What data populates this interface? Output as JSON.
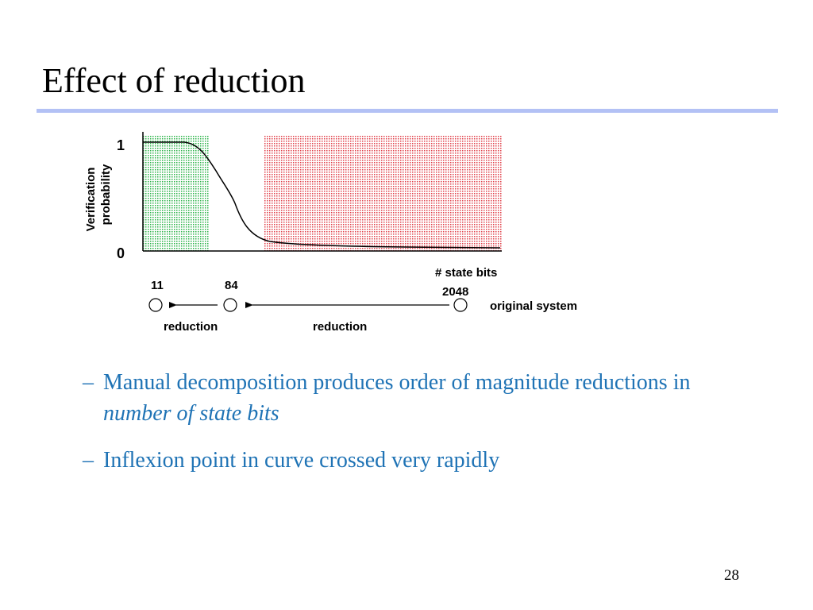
{
  "slide": {
    "title": "Effect of reduction",
    "page_number": "28"
  },
  "figure": {
    "y_axis_label_line1": "Verification",
    "y_axis_label_line2": "probability",
    "y_tick_top": "1",
    "y_tick_bottom": "0",
    "x_axis_label": "# state bits",
    "x_value_original": "2048",
    "x_value_mid": "84",
    "x_value_small": "11",
    "original_label": "original system",
    "reduction_label_right": "reduction",
    "reduction_label_left": "reduction",
    "colors": {
      "green_region": "#2db34a",
      "red_region": "#e0404a",
      "curve": "#000000"
    }
  },
  "bullets": [
    {
      "dash": "–",
      "text_plain": "Manual decomposition produces order of magnitude reductions in ",
      "text_italic": "number of state bits"
    },
    {
      "dash": "–",
      "text_plain": "Inflexion point in curve crossed very rapidly"
    }
  ]
}
